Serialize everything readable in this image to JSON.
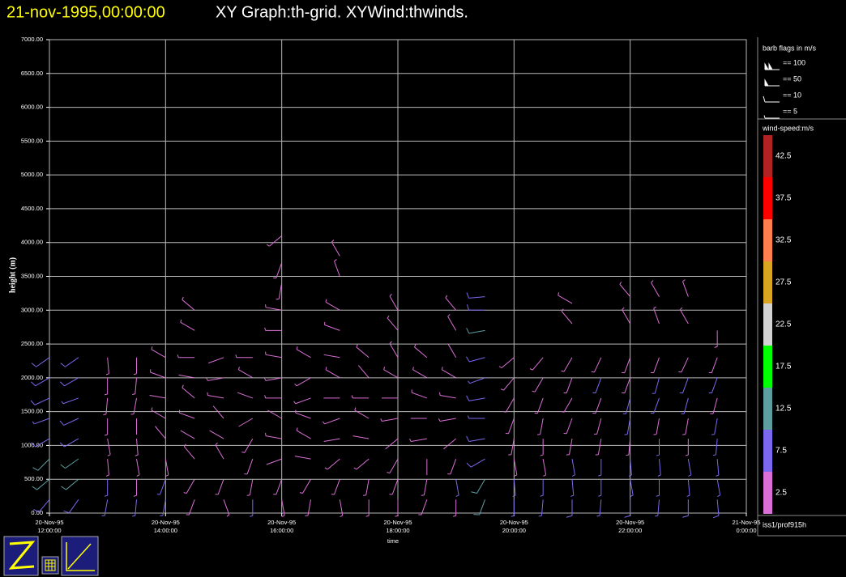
{
  "chart_data": {
    "type": "wind-barb",
    "title": "21-nov-1995,00:00:00",
    "subtitle": "XY Graph:th-grid.  XYWind:thwinds.",
    "xlabel": "time",
    "ylabel": "height (m)",
    "xlim": [
      12,
      24
    ],
    "xticks": [
      {
        "value": 12,
        "label": [
          "20-Nov-95",
          "12:00:00"
        ]
      },
      {
        "value": 14,
        "label": [
          "20-Nov-95",
          "14:00:00"
        ]
      },
      {
        "value": 16,
        "label": [
          "20-Nov-95",
          "16:00:00"
        ]
      },
      {
        "value": 18,
        "label": [
          "20-Nov-95",
          "18:00:00"
        ]
      },
      {
        "value": 20,
        "label": [
          "20-Nov-95",
          "20:00:00"
        ]
      },
      {
        "value": 22,
        "label": [
          "20-Nov-95",
          "22:00:00"
        ]
      },
      {
        "value": 24,
        "label": [
          "21-Nov-95",
          "0:00:00"
        ]
      }
    ],
    "ylim": [
      0,
      7000
    ],
    "yticks": [
      {
        "value": 0,
        "label": "0.00"
      },
      {
        "value": 500,
        "label": "500.00"
      },
      {
        "value": 1000,
        "label": "1000.00"
      },
      {
        "value": 1500,
        "label": "1500.00"
      },
      {
        "value": 2000,
        "label": "2000.00"
      },
      {
        "value": 2500,
        "label": "2500.00"
      },
      {
        "value": 3000,
        "label": "3000.00"
      },
      {
        "value": 3500,
        "label": "3500.00"
      },
      {
        "value": 4000,
        "label": "4000.00"
      },
      {
        "value": 4500,
        "label": "4500.00"
      },
      {
        "value": 5000,
        "label": "5000.00"
      },
      {
        "value": 5500,
        "label": "5500.00"
      },
      {
        "value": 6000,
        "label": "6000.00"
      },
      {
        "value": 6500,
        "label": "6500.00"
      },
      {
        "value": 7000,
        "label": "7000.00"
      }
    ],
    "grid": true,
    "barb_legend": {
      "title": "barb flags in m/s",
      "keys": [
        {
          "value": 100,
          "label": "== 100"
        },
        {
          "value": 50,
          "label": "== 50"
        },
        {
          "value": 10,
          "label": "== 10"
        },
        {
          "value": 5,
          "label": "== 5"
        }
      ]
    },
    "colorbar": {
      "title": "wind-speed:m/s",
      "labels": [
        2.5,
        7.5,
        12.5,
        17.5,
        22.5,
        27.5,
        32.5,
        37.5,
        42.5
      ],
      "colors": [
        "#da70d6",
        "#7b68ee",
        "#5f9ea0",
        "#00ff00",
        "#d3d3d3",
        "#daa520",
        "#ff7f50",
        "#ff0000",
        "#b22222"
      ]
    },
    "source": "iss1/prof915h",
    "profiles": [
      {
        "x": 12.0,
        "y": [
          200,
          500,
          800,
          1100,
          1400,
          1700,
          2000,
          2300
        ],
        "speed": [
          9,
          11,
          10,
          8,
          7,
          8,
          9,
          8
        ],
        "direction": [
          220,
          230,
          225,
          240,
          250,
          245,
          240,
          235
        ]
      },
      {
        "x": 12.5,
        "y": [
          200,
          500,
          800,
          1100,
          1400,
          1700,
          2000,
          2300
        ],
        "speed": [
          8,
          12,
          11,
          9,
          8,
          7,
          8,
          9
        ],
        "direction": [
          215,
          230,
          235,
          240,
          245,
          250,
          240,
          235
        ]
      },
      {
        "x": 13.0,
        "y": [
          200,
          500,
          800,
          1100,
          1400,
          1700,
          2000,
          2300
        ],
        "speed": [
          6,
          5,
          4,
          3,
          3,
          3,
          3,
          4
        ],
        "direction": [
          190,
          180,
          175,
          170,
          180,
          185,
          180,
          175
        ]
      },
      {
        "x": 13.5,
        "y": [
          200,
          500,
          800,
          1100,
          1400,
          1700,
          2000,
          2300
        ],
        "speed": [
          5,
          4,
          3,
          3,
          2,
          3,
          3,
          4
        ],
        "direction": [
          185,
          180,
          170,
          175,
          180,
          190,
          185,
          180
        ]
      },
      {
        "x": 14.0,
        "y": [
          200,
          500,
          800,
          1100,
          1400,
          1700,
          2000,
          2300
        ],
        "speed": [
          6,
          5,
          3,
          2,
          3,
          2,
          3,
          3
        ],
        "direction": [
          190,
          200,
          170,
          320,
          300,
          280,
          290,
          300
        ]
      },
      {
        "x": 14.5,
        "y": [
          200,
          500,
          800,
          1100,
          1400,
          1700,
          2000,
          2300
        ],
        "speed": [
          4,
          3,
          3,
          2,
          3,
          3,
          2,
          3
        ],
        "direction": [
          200,
          210,
          320,
          300,
          290,
          310,
          280,
          270
        ]
      },
      {
        "x": 15.0,
        "y": [
          200,
          500,
          800,
          1100,
          1400,
          1700,
          2000,
          2300
        ],
        "speed": [
          3,
          4,
          3,
          2,
          2,
          3,
          3,
          2
        ],
        "direction": [
          160,
          200,
          330,
          300,
          320,
          280,
          260,
          250
        ]
      },
      {
        "x": 15.5,
        "y": [
          200,
          500,
          800,
          1100,
          1400,
          1700,
          2000,
          2300
        ],
        "speed": [
          5,
          4,
          3,
          3,
          2,
          2,
          3,
          3
        ],
        "direction": [
          180,
          190,
          200,
          210,
          240,
          290,
          300,
          270
        ]
      },
      {
        "x": 16.0,
        "y": [
          200,
          500,
          800,
          1100,
          1400,
          1700,
          2000,
          2300
        ],
        "speed": [
          3,
          3,
          2,
          3,
          2,
          3,
          3,
          3
        ],
        "direction": [
          170,
          200,
          250,
          280,
          300,
          270,
          260,
          280
        ]
      },
      {
        "x": 16.5,
        "y": [
          200,
          500,
          800,
          1100,
          1400,
          1700,
          2000,
          2300
        ],
        "speed": [
          4,
          3,
          2,
          3,
          3,
          4,
          3,
          3
        ],
        "direction": [
          190,
          210,
          280,
          300,
          290,
          250,
          240,
          300
        ]
      },
      {
        "x": 17.0,
        "y": [
          200,
          500,
          800,
          1100,
          1400,
          1700,
          2000,
          2300
        ],
        "speed": [
          4,
          3,
          3,
          2,
          3,
          2,
          3,
          2
        ],
        "direction": [
          170,
          200,
          230,
          260,
          250,
          270,
          300,
          280
        ]
      },
      {
        "x": 17.5,
        "y": [
          200,
          500,
          800,
          1100,
          1400,
          1700,
          2000,
          2300
        ],
        "speed": [
          3,
          4,
          3,
          2,
          3,
          3,
          2,
          3
        ],
        "direction": [
          180,
          190,
          230,
          280,
          300,
          270,
          320,
          310
        ]
      },
      {
        "x": 18.0,
        "y": [
          200,
          500,
          800,
          1100,
          1400,
          1700,
          2000,
          2300
        ],
        "speed": [
          4,
          3,
          3,
          2,
          3,
          2,
          3,
          3
        ],
        "direction": [
          180,
          200,
          210,
          230,
          260,
          270,
          300,
          330
        ]
      },
      {
        "x": 18.5,
        "y": [
          200,
          500,
          800,
          1100,
          1400,
          1700,
          2000,
          2300
        ],
        "speed": [
          3,
          3,
          2,
          3,
          2,
          3,
          3,
          3
        ],
        "direction": [
          200,
          190,
          180,
          260,
          270,
          290,
          300,
          310
        ]
      },
      {
        "x": 19.0,
        "y": [
          200,
          500,
          800,
          1100,
          1400,
          1700,
          2000,
          2300
        ],
        "speed": [
          4,
          5,
          3,
          2,
          3,
          3,
          3,
          2
        ],
        "direction": [
          180,
          170,
          200,
          230,
          260,
          280,
          300,
          330
        ]
      },
      {
        "x": 19.5,
        "y": [
          200,
          500,
          800,
          1100,
          1400,
          1700,
          2000,
          2300
        ],
        "speed": [
          11,
          12,
          9,
          8,
          7,
          8,
          7,
          9
        ],
        "direction": [
          200,
          210,
          240,
          260,
          270,
          260,
          250,
          255
        ]
      },
      {
        "x": 20.0,
        "y": [
          200,
          500,
          800,
          1100,
          1400,
          1700,
          2000,
          2300
        ],
        "speed": [
          6,
          5,
          4,
          3,
          3,
          3,
          3,
          3
        ],
        "direction": [
          180,
          175,
          170,
          190,
          200,
          210,
          220,
          230
        ]
      },
      {
        "x": 20.5,
        "y": [
          200,
          500,
          800,
          1100,
          1400,
          1700,
          2000,
          2300
        ],
        "speed": [
          7,
          6,
          4,
          3,
          3,
          3,
          4,
          3
        ],
        "direction": [
          185,
          180,
          170,
          180,
          190,
          200,
          210,
          220
        ]
      },
      {
        "x": 21.0,
        "y": [
          200,
          500,
          800,
          1100,
          1400,
          1700,
          2000,
          2300
        ],
        "speed": [
          8,
          7,
          5,
          3,
          3,
          4,
          4,
          3
        ],
        "direction": [
          180,
          175,
          170,
          190,
          200,
          210,
          200,
          210
        ]
      },
      {
        "x": 21.5,
        "y": [
          200,
          500,
          800,
          1100,
          1400,
          1700,
          2000,
          2300
        ],
        "speed": [
          7,
          6,
          5,
          4,
          4,
          4,
          5,
          4
        ],
        "direction": [
          185,
          180,
          180,
          190,
          195,
          200,
          200,
          205
        ]
      },
      {
        "x": 22.0,
        "y": [
          200,
          500,
          800,
          1100,
          1400,
          1700,
          2000,
          2300
        ],
        "speed": [
          8,
          7,
          5,
          4,
          5,
          5,
          4,
          4
        ],
        "direction": [
          180,
          170,
          175,
          185,
          190,
          195,
          200,
          200
        ]
      },
      {
        "x": 22.5,
        "y": [
          200,
          500,
          800,
          1100,
          1400,
          1700,
          2000,
          2300
        ],
        "speed": [
          7,
          6,
          5,
          5,
          4,
          5,
          5,
          4
        ],
        "direction": [
          185,
          180,
          175,
          180,
          190,
          200,
          195,
          200
        ]
      },
      {
        "x": 23.0,
        "y": [
          200,
          500,
          800,
          1100,
          1400,
          1700,
          2000,
          2300
        ],
        "speed": [
          8,
          6,
          5,
          4,
          4,
          5,
          5,
          4
        ],
        "direction": [
          180,
          175,
          170,
          180,
          190,
          195,
          200,
          205
        ]
      },
      {
        "x": 23.5,
        "y": [
          200,
          500,
          800,
          1100,
          1400,
          1700,
          2000,
          2300
        ],
        "speed": [
          9,
          7,
          6,
          5,
          5,
          4,
          5,
          4
        ],
        "direction": [
          175,
          170,
          175,
          185,
          190,
          195,
          200,
          200
        ]
      },
      {
        "x": 14.5,
        "y": [
          2700,
          3000
        ],
        "speed": [
          3,
          3
        ],
        "direction": [
          300,
          310
        ]
      },
      {
        "x": 16.0,
        "y": [
          2700,
          3000,
          3400,
          3700,
          4100
        ],
        "speed": [
          3,
          3,
          4,
          3,
          3
        ],
        "direction": [
          270,
          280,
          190,
          200,
          230
        ]
      },
      {
        "x": 17.0,
        "y": [
          2700,
          3000,
          3500,
          3800
        ],
        "speed": [
          3,
          3,
          3,
          3
        ],
        "direction": [
          290,
          300,
          340,
          330
        ]
      },
      {
        "x": 18.0,
        "y": [
          2700,
          3000
        ],
        "speed": [
          3,
          3
        ],
        "direction": [
          320,
          330
        ]
      },
      {
        "x": 19.0,
        "y": [
          2700,
          3000
        ],
        "speed": [
          3,
          3
        ],
        "direction": [
          330,
          320
        ]
      },
      {
        "x": 19.5,
        "y": [
          2700,
          3000,
          3200
        ],
        "speed": [
          10,
          9,
          8
        ],
        "direction": [
          260,
          270,
          265
        ]
      },
      {
        "x": 21.0,
        "y": [
          2800,
          3100
        ],
        "speed": [
          3,
          3
        ],
        "direction": [
          320,
          300
        ]
      },
      {
        "x": 22.0,
        "y": [
          2800,
          3200
        ],
        "speed": [
          3,
          3
        ],
        "direction": [
          330,
          320
        ]
      },
      {
        "x": 22.5,
        "y": [
          2800,
          3200
        ],
        "speed": [
          3,
          3
        ],
        "direction": [
          340,
          330
        ]
      },
      {
        "x": 23.0,
        "y": [
          2800,
          3200
        ],
        "speed": [
          3,
          3
        ],
        "direction": [
          330,
          340
        ]
      },
      {
        "x": 23.5,
        "y": [
          2700
        ],
        "speed": [
          4
        ],
        "direction": [
          180
        ]
      }
    ]
  }
}
